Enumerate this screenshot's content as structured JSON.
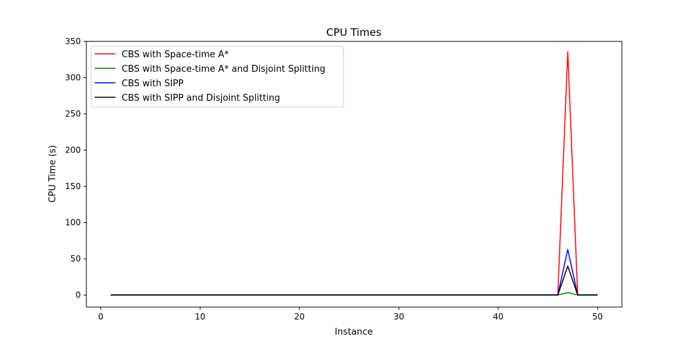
{
  "chart_data": {
    "type": "line",
    "title": "CPU Times",
    "xlabel": "Instance",
    "ylabel": "CPU Time (s)",
    "xlim": [
      -1.45,
      52.45
    ],
    "ylim": [
      -16.5,
      350
    ],
    "xticks": [
      0,
      10,
      20,
      30,
      40,
      50
    ],
    "yticks": [
      0,
      50,
      100,
      150,
      200,
      250,
      300,
      350
    ],
    "grid": false,
    "legend_position": "upper-left",
    "x": [
      1,
      2,
      3,
      4,
      5,
      6,
      7,
      8,
      9,
      10,
      11,
      12,
      13,
      14,
      15,
      16,
      17,
      18,
      19,
      20,
      21,
      22,
      23,
      24,
      25,
      26,
      27,
      28,
      29,
      30,
      31,
      32,
      33,
      34,
      35,
      36,
      37,
      38,
      39,
      40,
      41,
      42,
      43,
      44,
      45,
      46,
      47,
      48,
      49,
      50
    ],
    "series": [
      {
        "name": "CBS with Space-time A*",
        "color": "#ff0000",
        "values": [
          0.2,
          0.2,
          0.2,
          0.2,
          0.2,
          0.2,
          0.2,
          0.3,
          0.2,
          0.2,
          0.2,
          0.2,
          0.2,
          0.2,
          0.2,
          0.2,
          0.2,
          0.2,
          0.2,
          0.2,
          0.2,
          0.2,
          0.2,
          0.2,
          0.2,
          0.2,
          0.2,
          0.2,
          0.2,
          0.2,
          0.2,
          0.2,
          0.2,
          0.2,
          0.2,
          0.2,
          0.2,
          0.2,
          0.2,
          0.2,
          0.2,
          0.2,
          0.2,
          0.2,
          0.2,
          0.2,
          336,
          0.2,
          0.2,
          0.2
        ]
      },
      {
        "name": "CBS with Space-time A* and Disjoint Splitting",
        "color": "#008000",
        "values": [
          0.1,
          0.1,
          0.1,
          0.1,
          0.1,
          0.1,
          0.1,
          0.2,
          0.1,
          0.1,
          0.1,
          0.1,
          0.1,
          0.1,
          0.1,
          0.1,
          0.1,
          0.1,
          0.1,
          0.1,
          0.1,
          0.1,
          0.1,
          0.1,
          0.1,
          0.1,
          0.1,
          0.1,
          0.1,
          0.1,
          0.1,
          0.1,
          0.1,
          0.1,
          0.1,
          0.1,
          0.1,
          0.1,
          0.1,
          0.1,
          0.3,
          0.1,
          0.1,
          0.1,
          0.1,
          0.1,
          3.5,
          0.1,
          0.1,
          0.1
        ]
      },
      {
        "name": "CBS with SIPP",
        "color": "#0000ff",
        "values": [
          0.1,
          0.1,
          0.1,
          0.1,
          0.1,
          0.1,
          0.1,
          0.1,
          0.1,
          0.1,
          0.1,
          0.1,
          0.1,
          0.1,
          0.1,
          0.1,
          0.1,
          0.1,
          0.1,
          0.1,
          0.1,
          0.1,
          0.1,
          0.1,
          0.1,
          0.1,
          0.1,
          0.1,
          0.1,
          0.1,
          0.1,
          0.1,
          0.1,
          0.1,
          0.1,
          0.1,
          0.1,
          0.1,
          0.1,
          0.1,
          0.1,
          0.1,
          0.1,
          0.1,
          0.1,
          0.1,
          63,
          0.1,
          0.1,
          0.1
        ]
      },
      {
        "name": "CBS with SIPP and Disjoint Splitting",
        "color": "#000000",
        "values": [
          0.1,
          0.1,
          0.1,
          0.1,
          0.1,
          0.1,
          0.1,
          0.1,
          0.1,
          0.1,
          0.1,
          0.1,
          0.1,
          0.1,
          0.1,
          0.1,
          0.1,
          0.1,
          0.1,
          0.1,
          0.1,
          0.1,
          0.1,
          0.1,
          0.1,
          0.1,
          0.1,
          0.1,
          0.1,
          0.1,
          0.1,
          0.1,
          0.1,
          0.1,
          0.1,
          0.1,
          0.1,
          0.1,
          0.1,
          0.1,
          0.1,
          0.1,
          0.1,
          0.1,
          0.1,
          0.1,
          40,
          0.1,
          0.1,
          0.1
        ]
      }
    ]
  }
}
